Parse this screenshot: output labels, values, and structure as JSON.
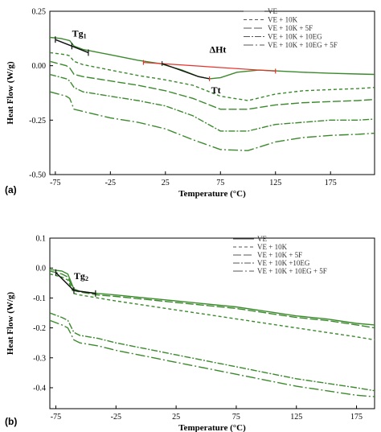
{
  "chart_data": [
    {
      "panel_label": "(a)",
      "type": "line",
      "xlabel": "Temperature (°C)",
      "ylabel": "Heat Flow (W/g)",
      "xlim": [
        -80,
        215
      ],
      "ylim": [
        -0.5,
        0.25
      ],
      "xticks": [
        "-75",
        "-25",
        "25",
        "75",
        "125",
        "175"
      ],
      "xtick_values": [
        -75,
        -25,
        25,
        75,
        125,
        175
      ],
      "yticks": [
        "0.25",
        "0.00",
        "-0.25",
        "-0.50"
      ],
      "ytick_values": [
        0.25,
        0.0,
        -0.25,
        -0.5
      ],
      "legend_position": "top-right",
      "series": [
        {
          "name": "VE",
          "dash": "",
          "x": [
            -80,
            -70,
            -62,
            -58,
            -50,
            -40,
            -25,
            0,
            20,
            40,
            55,
            65,
            75,
            90,
            110,
            130,
            150,
            175,
            200,
            215
          ],
          "values": [
            0.13,
            0.125,
            0.115,
            0.09,
            0.075,
            0.065,
            0.05,
            0.025,
            0.01,
            -0.02,
            -0.05,
            -0.06,
            -0.055,
            -0.03,
            -0.02,
            -0.025,
            -0.03,
            -0.035,
            -0.038,
            -0.04
          ]
        },
        {
          "name": "VE + 10K",
          "dash": "4,3",
          "x": [
            -80,
            -65,
            -62,
            -58,
            -50,
            -25,
            0,
            25,
            50,
            75,
            100,
            125,
            150,
            175,
            200,
            215
          ],
          "values": [
            0.06,
            0.05,
            0.045,
            0.02,
            0.005,
            -0.02,
            -0.045,
            -0.065,
            -0.09,
            -0.14,
            -0.16,
            -0.13,
            -0.115,
            -0.11,
            -0.105,
            -0.1
          ]
        },
        {
          "name": "VE + 10K + 5F",
          "dash": "10,3",
          "x": [
            -80,
            -65,
            -62,
            -58,
            -50,
            -25,
            0,
            25,
            50,
            75,
            100,
            125,
            150,
            175,
            200,
            215
          ],
          "values": [
            0.02,
            0.0,
            -0.01,
            -0.04,
            -0.05,
            -0.07,
            -0.09,
            -0.115,
            -0.15,
            -0.2,
            -0.2,
            -0.18,
            -0.17,
            -0.165,
            -0.16,
            -0.155
          ]
        },
        {
          "name": "VE + 10K + 10EG",
          "dash": "8,2,2,2",
          "x": [
            -80,
            -65,
            -62,
            -58,
            -50,
            -25,
            0,
            25,
            50,
            75,
            100,
            125,
            150,
            175,
            200,
            215
          ],
          "values": [
            -0.04,
            -0.06,
            -0.07,
            -0.1,
            -0.12,
            -0.14,
            -0.16,
            -0.185,
            -0.23,
            -0.3,
            -0.3,
            -0.27,
            -0.26,
            -0.25,
            -0.25,
            -0.245
          ]
        },
        {
          "name": "VE + 10K + 10EG + 5F",
          "dash": "12,3,2,3",
          "x": [
            -80,
            -65,
            -62,
            -58,
            -50,
            -25,
            0,
            25,
            50,
            75,
            100,
            125,
            150,
            175,
            200,
            215
          ],
          "values": [
            -0.12,
            -0.14,
            -0.15,
            -0.2,
            -0.21,
            -0.24,
            -0.26,
            -0.29,
            -0.34,
            -0.385,
            -0.39,
            -0.35,
            -0.33,
            -0.32,
            -0.315,
            -0.31
          ]
        }
      ],
      "annotations": {
        "tg": "Tg",
        "tg_sub": "1",
        "tg_x": -62,
        "tg_y": 0.115,
        "tg_line_x": [
          -75,
          -60,
          -45
        ],
        "tg_line_y": [
          0.12,
          0.09,
          0.06
        ],
        "delta_h": "ΔHt",
        "tt": "Tt",
        "tt_x": 65,
        "tt_y": -0.06,
        "baseline_x": [
          5,
          125
        ],
        "baseline_y": [
          0.015,
          -0.025
        ],
        "baseline_color": "#e8312b"
      }
    },
    {
      "panel_label": "(b)",
      "type": "line",
      "xlabel": "Temperature (°C)",
      "ylabel": "Heat Flow (W/g)",
      "xlim": [
        -80,
        190
      ],
      "ylim": [
        -0.47,
        0.1
      ],
      "xticks": [
        "-75",
        "-25",
        "25",
        "75",
        "125",
        "175"
      ],
      "xtick_values": [
        -75,
        -25,
        25,
        75,
        125,
        175
      ],
      "yticks": [
        "0.1",
        "0.0",
        "-0.1",
        "-0.2",
        "-0.3",
        "-0.4"
      ],
      "ytick_values": [
        0.1,
        0.0,
        -0.1,
        -0.2,
        -0.3,
        -0.4
      ],
      "legend_position": "top-right",
      "series": [
        {
          "name": "VE",
          "dash": "",
          "x": [
            -80,
            -70,
            -65,
            -60,
            -55,
            -40,
            -25,
            0,
            25,
            50,
            75,
            100,
            125,
            150,
            175,
            190
          ],
          "values": [
            -0.005,
            -0.01,
            -0.02,
            -0.07,
            -0.078,
            -0.085,
            -0.09,
            -0.1,
            -0.11,
            -0.12,
            -0.13,
            -0.145,
            -0.16,
            -0.17,
            -0.185,
            -0.19
          ]
        },
        {
          "name": "VE + 10K",
          "dash": "4,3",
          "x": [
            -80,
            -70,
            -65,
            -60,
            -55,
            -40,
            -25,
            0,
            25,
            50,
            75,
            100,
            125,
            150,
            175,
            190
          ],
          "values": [
            -0.02,
            -0.03,
            -0.04,
            -0.085,
            -0.09,
            -0.1,
            -0.11,
            -0.125,
            -0.14,
            -0.155,
            -0.17,
            -0.185,
            -0.2,
            -0.215,
            -0.23,
            -0.24
          ]
        },
        {
          "name": "VE + 10K + 5F",
          "dash": "10,3",
          "x": [
            -80,
            -70,
            -65,
            -60,
            -55,
            -40,
            -25,
            0,
            25,
            50,
            75,
            100,
            125,
            150,
            175,
            190
          ],
          "values": [
            -0.01,
            -0.02,
            -0.03,
            -0.075,
            -0.08,
            -0.09,
            -0.095,
            -0.105,
            -0.115,
            -0.125,
            -0.135,
            -0.15,
            -0.165,
            -0.175,
            -0.19,
            -0.2
          ]
        },
        {
          "name": "VE + 10K +10EG",
          "dash": "8,2,2,2",
          "x": [
            -80,
            -70,
            -65,
            -60,
            -55,
            -40,
            -25,
            0,
            25,
            50,
            75,
            100,
            125,
            150,
            175,
            190
          ],
          "values": [
            -0.15,
            -0.165,
            -0.175,
            -0.215,
            -0.225,
            -0.235,
            -0.25,
            -0.27,
            -0.29,
            -0.31,
            -0.33,
            -0.35,
            -0.37,
            -0.385,
            -0.4,
            -0.41
          ]
        },
        {
          "name": "VE + 10K + 10EG + 5F",
          "dash": "12,3,2,3",
          "x": [
            -80,
            -70,
            -65,
            -60,
            -55,
            -40,
            -25,
            0,
            25,
            50,
            75,
            100,
            125,
            150,
            175,
            190
          ],
          "values": [
            -0.175,
            -0.19,
            -0.2,
            -0.24,
            -0.25,
            -0.26,
            -0.275,
            -0.295,
            -0.315,
            -0.335,
            -0.355,
            -0.375,
            -0.395,
            -0.41,
            -0.425,
            -0.43
          ]
        }
      ],
      "annotations": {
        "tg": "Tg",
        "tg_sub": "2",
        "tg_x": -62,
        "tg_y": -0.05,
        "tg_line_x": [
          -75,
          -60,
          -42
        ],
        "tg_line_y": [
          -0.015,
          -0.075,
          -0.085
        ]
      }
    }
  ]
}
